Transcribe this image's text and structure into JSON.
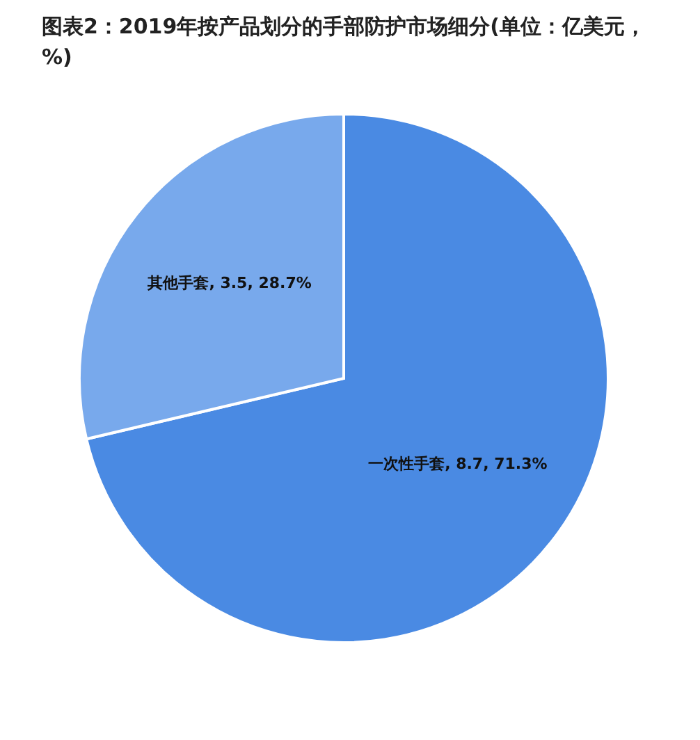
{
  "chart_data": {
    "type": "pie",
    "title": "图表2：2019年按产品划分的手部防护市场细分(单位：亿美元，%)",
    "categories": [
      "一次性手套",
      "其他手套"
    ],
    "values": [
      8.7,
      3.5
    ],
    "value_labels": [
      "8.7, 71.3%",
      "3.5, 28.7%"
    ],
    "colors": [
      "#4a8ae3",
      "#78a9ec"
    ]
  }
}
